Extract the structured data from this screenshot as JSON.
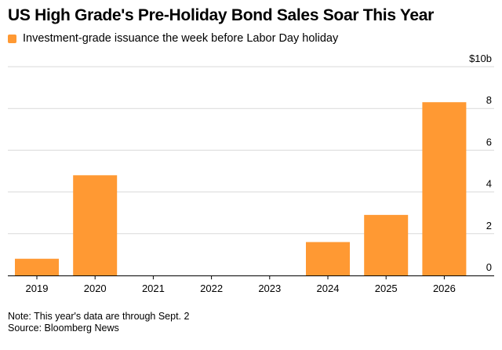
{
  "title": "US High Grade's Pre-Holiday Bond Sales Soar This Year",
  "legend": [
    {
      "label": "Investment-grade issuance the week before Labor Day holiday",
      "color": "#FF9933"
    }
  ],
  "footnotes": {
    "note": "Note: This year's data are through Sept. 2",
    "source": "Source: Bloomberg News"
  },
  "chart_data": {
    "type": "bar",
    "title": "US High Grade's Pre-Holiday Bond Sales Soar This Year",
    "xlabel": "",
    "ylabel": "",
    "categories": [
      "2019",
      "2020",
      "2021",
      "2022",
      "2023",
      "2024",
      "2025",
      "2026"
    ],
    "series": [
      {
        "name": "Investment-grade issuance the week before Labor Day holiday",
        "color": "#FF9933",
        "values": [
          0.8,
          4.8,
          0,
          0,
          0,
          1.6,
          2.9,
          8.3
        ]
      }
    ],
    "ylim": [
      0,
      10
    ],
    "yticks": [
      0,
      2,
      4,
      6,
      8,
      10
    ],
    "ytick_labels": [
      "0",
      "2",
      "4",
      "6",
      "8",
      "$10b"
    ],
    "y_axis_side": "right",
    "grid": true,
    "legend_position": "top-left"
  }
}
